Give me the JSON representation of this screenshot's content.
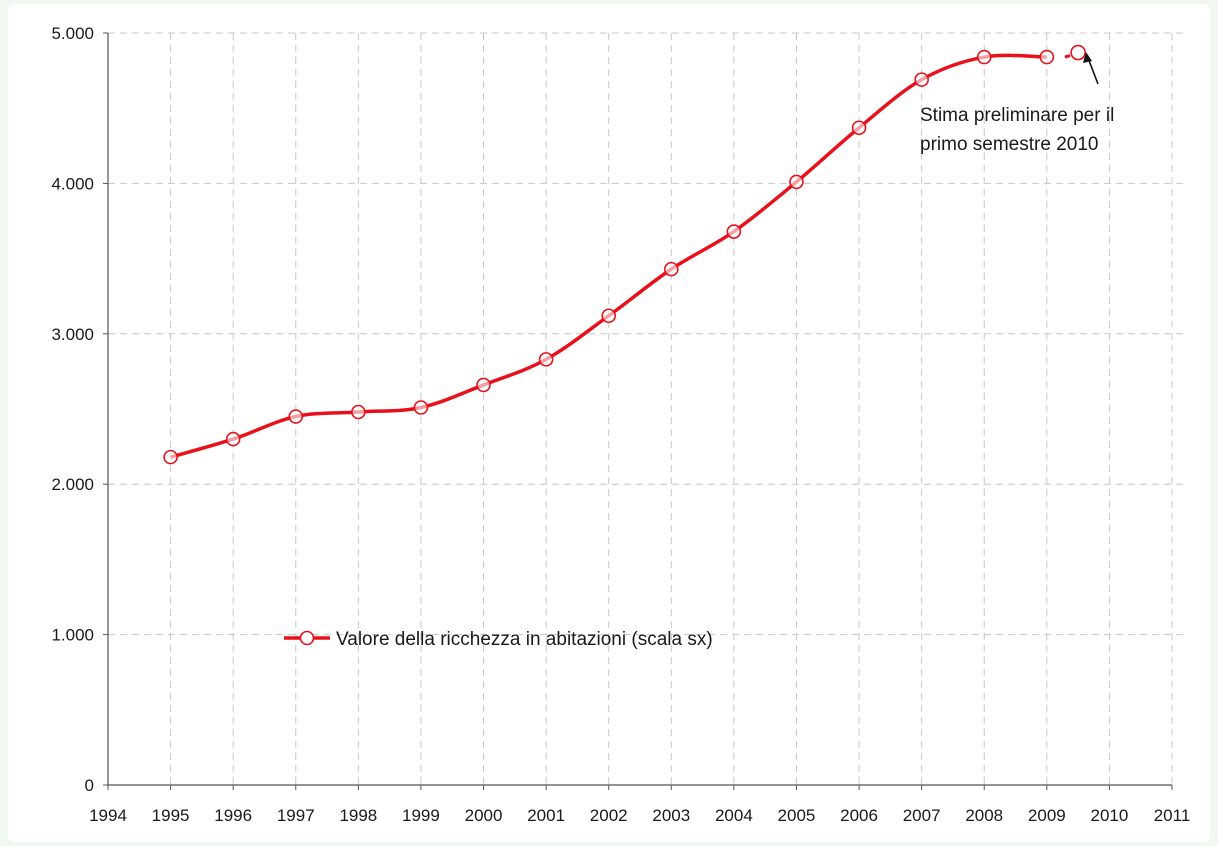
{
  "chart_data": {
    "type": "line",
    "title": "",
    "xlabel": "",
    "ylabel": "",
    "xlim": [
      1994,
      2011
    ],
    "ylim": [
      0,
      5000
    ],
    "x_ticks": [
      "1994",
      "1995",
      "1996",
      "1997",
      "1998",
      "1999",
      "2000",
      "2001",
      "2002",
      "2003",
      "2004",
      "2005",
      "2006",
      "2007",
      "2008",
      "2009",
      "2010",
      "2011"
    ],
    "y_ticks": [
      "0",
      "1.000",
      "2.000",
      "3.000",
      "4.000",
      "5.000"
    ],
    "grid": true,
    "legend_placement": "center-left",
    "series": [
      {
        "name": "Valore della ricchezza in abitazioni (scala sx)",
        "color": "#e8111b",
        "marker": "open-circle",
        "x": [
          1995,
          1996,
          1997,
          1998,
          1999,
          2000,
          2001,
          2002,
          2003,
          2004,
          2005,
          2006,
          2007,
          2008,
          2009
        ],
        "values": [
          2180,
          2300,
          2450,
          2480,
          2510,
          2660,
          2830,
          3120,
          3430,
          3680,
          4010,
          4370,
          4690,
          4840,
          4840
        ]
      }
    ],
    "estimate_point": {
      "x": 2009.5,
      "value": 4870
    },
    "annotations": [
      {
        "line1": "Stima preliminare per il",
        "line2": "primo semestre 2010"
      }
    ]
  }
}
